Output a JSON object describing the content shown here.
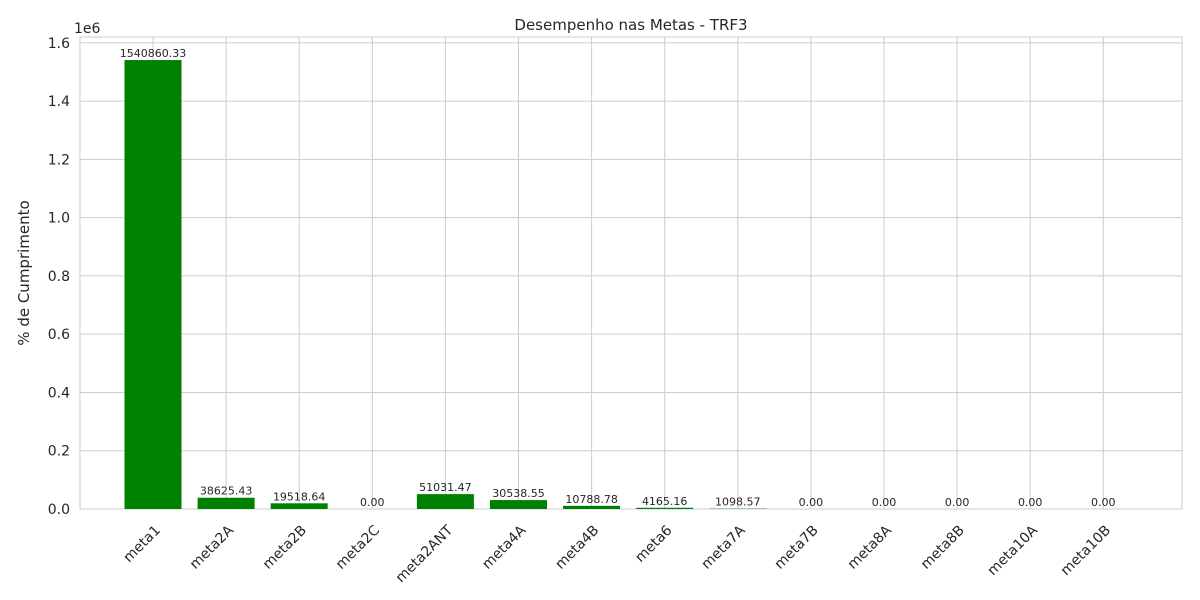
{
  "chart_data": {
    "type": "bar",
    "title": "Desempenho nas Metas - TRF3",
    "xlabel": "",
    "ylabel": "% de Cumprimento",
    "y_offset_label": "1e6",
    "ylim": [
      0,
      1.62
    ],
    "y_scale": 1000000,
    "yticks": [
      "0.0",
      "0.2",
      "0.4",
      "0.6",
      "0.8",
      "1.0",
      "1.2",
      "1.4",
      "1.6"
    ],
    "grid": true,
    "bar_color": "#008000",
    "categories": [
      "meta1",
      "meta2A",
      "meta2B",
      "meta2C",
      "meta2ANT",
      "meta4A",
      "meta4B",
      "meta6",
      "meta7A",
      "meta7B",
      "meta8A",
      "meta8B",
      "meta10A",
      "meta10B"
    ],
    "values": [
      1540860.33,
      38625.43,
      19518.64,
      0.0,
      51031.47,
      30538.55,
      10788.78,
      4165.16,
      1098.57,
      0.0,
      0.0,
      0.0,
      0.0,
      0.0
    ],
    "value_labels": [
      "1540860.33",
      "38625.43",
      "19518.64",
      "0.00",
      "51031.47",
      "30538.55",
      "10788.78",
      "4165.16",
      "1098.57",
      "0.00",
      "0.00",
      "0.00",
      "0.00",
      "0.00"
    ]
  }
}
